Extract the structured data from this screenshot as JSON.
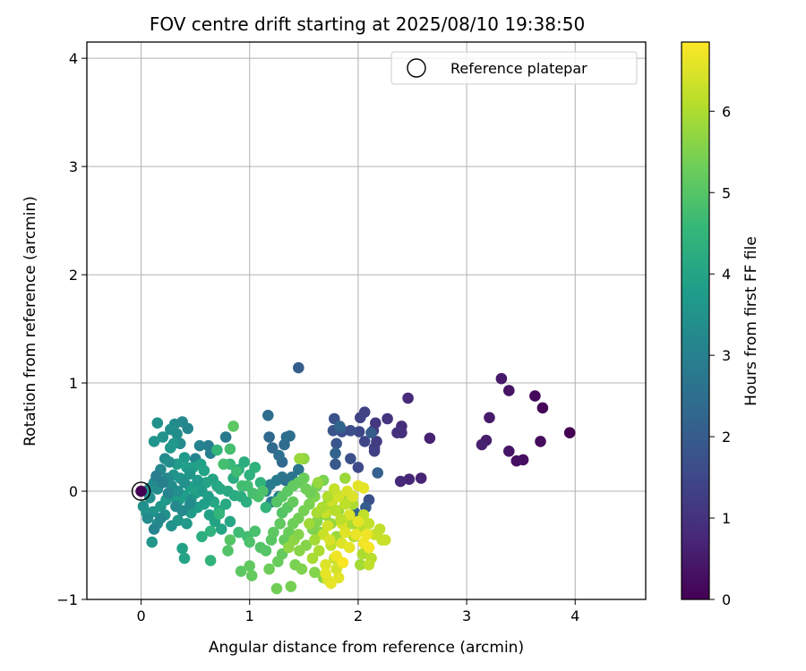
{
  "chart_data": {
    "type": "scatter",
    "title": "FOV centre drift starting at 2025/08/10 19:38:50",
    "xlabel": "Angular distance from reference (arcmin)",
    "ylabel": "Rotation from reference (arcmin)",
    "xlim": [
      -0.5,
      4.65
    ],
    "ylim": [
      -1.0,
      4.15
    ],
    "xticks": [
      0,
      1,
      2,
      3,
      4
    ],
    "xtick_labels": [
      "0",
      "1",
      "2",
      "3",
      "4"
    ],
    "yticks": [
      -1,
      0,
      1,
      2,
      3,
      4
    ],
    "ytick_labels": [
      "−1",
      "0",
      "1",
      "2",
      "3",
      "4"
    ],
    "grid": true,
    "legend": {
      "position": "top-right",
      "entries": [
        "Reference platepar"
      ]
    },
    "reference_point": {
      "x": 0,
      "y": 0,
      "label": "Reference platepar"
    },
    "colorbar": {
      "label": "Hours from first FF file",
      "min": 0,
      "max": 6.85,
      "ticks": [
        0,
        1,
        2,
        3,
        4,
        5,
        6
      ],
      "tick_labels": [
        "0",
        "1",
        "2",
        "3",
        "4",
        "5",
        "6"
      ],
      "colormap": [
        "#440154",
        "#482878",
        "#3e4989",
        "#31688e",
        "#26828e",
        "#1f9e89",
        "#35b779",
        "#6ece58",
        "#b5de2b",
        "#fde725"
      ]
    },
    "series_points_note": "",
    "points": [
      [
        3.95,
        0.54,
        0.0
      ],
      [
        3.7,
        0.77,
        0.1
      ],
      [
        3.63,
        0.88,
        0.15
      ],
      [
        3.68,
        0.46,
        0.2
      ],
      [
        3.52,
        0.29,
        0.25
      ],
      [
        3.46,
        0.28,
        0.3
      ],
      [
        3.39,
        0.93,
        0.35
      ],
      [
        3.39,
        0.37,
        0.4
      ],
      [
        3.32,
        1.04,
        0.45
      ],
      [
        3.21,
        0.68,
        0.5
      ],
      [
        3.18,
        0.47,
        0.55
      ],
      [
        3.14,
        0.43,
        0.6
      ],
      [
        2.66,
        0.49,
        0.65
      ],
      [
        2.58,
        0.12,
        0.7
      ],
      [
        2.47,
        0.11,
        0.75
      ],
      [
        2.39,
        0.09,
        0.8
      ],
      [
        2.46,
        0.86,
        0.85
      ],
      [
        2.4,
        0.6,
        0.9
      ],
      [
        2.4,
        0.54,
        0.95
      ],
      [
        2.36,
        0.54,
        1.0
      ],
      [
        2.27,
        0.67,
        1.05
      ],
      [
        2.16,
        0.63,
        1.1
      ],
      [
        2.14,
        0.56,
        1.15
      ],
      [
        2.17,
        0.46,
        1.2
      ],
      [
        2.15,
        0.4,
        1.25
      ],
      [
        2.15,
        0.37,
        1.3
      ],
      [
        2.06,
        0.73,
        1.35
      ],
      [
        2.02,
        0.68,
        1.4
      ],
      [
        2.06,
        0.46,
        1.45
      ],
      [
        2.01,
        0.55,
        1.5
      ],
      [
        2.0,
        0.22,
        1.55
      ],
      [
        1.85,
        0.55,
        1.6
      ],
      [
        1.93,
        0.56,
        1.65
      ],
      [
        1.93,
        0.3,
        1.7
      ],
      [
        1.78,
        0.67,
        1.75
      ],
      [
        1.77,
        0.56,
        1.8
      ],
      [
        1.8,
        0.44,
        1.85
      ],
      [
        1.79,
        0.25,
        1.9
      ],
      [
        1.84,
        0.58,
        1.95
      ],
      [
        2.12,
        0.54,
        2.0
      ],
      [
        1.45,
        1.14,
        2.05
      ],
      [
        2.18,
        0.17,
        2.1
      ],
      [
        1.79,
        0.35,
        2.15
      ],
      [
        1.83,
        0.6,
        2.2
      ],
      [
        2.1,
        -0.08,
        1.7
      ],
      [
        2.07,
        -0.15,
        2.0
      ],
      [
        1.97,
        -0.2,
        2.2
      ],
      [
        1.18,
        0.5,
        2.3
      ],
      [
        1.21,
        0.4,
        2.35
      ],
      [
        1.32,
        0.43,
        2.4
      ],
      [
        1.34,
        0.5,
        2.45
      ],
      [
        1.37,
        0.51,
        2.5
      ],
      [
        1.5,
        0.3,
        2.55
      ],
      [
        1.45,
        0.2,
        2.6
      ],
      [
        1.39,
        0.13,
        2.65
      ],
      [
        1.34,
        0.1,
        2.7
      ],
      [
        1.3,
        0.13,
        2.75
      ],
      [
        1.25,
        0.1,
        2.8
      ],
      [
        1.19,
        0.06,
        2.85
      ],
      [
        1.15,
        0.0,
        2.9
      ],
      [
        1.2,
        -0.1,
        2.95
      ],
      [
        1.27,
        -0.05,
        3.0
      ],
      [
        1.3,
        0.27,
        2.3
      ],
      [
        1.27,
        0.33,
        2.55
      ],
      [
        1.33,
        0.1,
        2.6
      ],
      [
        1.17,
        0.7,
        2.4
      ],
      [
        0.78,
        0.5,
        2.8
      ],
      [
        0.62,
        0.42,
        2.9
      ],
      [
        0.64,
        0.35,
        3.0
      ],
      [
        0.54,
        0.42,
        3.05
      ],
      [
        0.5,
        0.3,
        3.1
      ],
      [
        0.43,
        0.58,
        3.15
      ],
      [
        0.38,
        0.64,
        3.2
      ],
      [
        0.36,
        0.44,
        3.25
      ],
      [
        0.31,
        0.62,
        3.3
      ],
      [
        0.33,
        0.53,
        3.35
      ],
      [
        0.27,
        0.57,
        3.4
      ],
      [
        0.15,
        0.63,
        3.45
      ],
      [
        0.2,
        0.5,
        3.5
      ],
      [
        0.12,
        0.46,
        3.55
      ],
      [
        0.3,
        0.44,
        3.6
      ],
      [
        0.27,
        0.4,
        3.65
      ],
      [
        0.4,
        0.31,
        3.7
      ],
      [
        0.33,
        0.25,
        3.75
      ],
      [
        0.42,
        0.22,
        3.8
      ],
      [
        0.48,
        0.22,
        3.85
      ],
      [
        0.55,
        0.25,
        3.9
      ],
      [
        0.58,
        0.19,
        3.95
      ],
      [
        0.66,
        0.11,
        4.0
      ],
      [
        0.7,
        0.05,
        4.05
      ],
      [
        0.73,
        0.02,
        4.1
      ],
      [
        0.8,
        0.0,
        4.15
      ],
      [
        0.86,
        -0.04,
        4.2
      ],
      [
        0.92,
        -0.05,
        4.25
      ],
      [
        0.97,
        -0.1,
        4.3
      ],
      [
        0.05,
        0.0,
        3.2
      ],
      [
        0.08,
        0.03,
        3.25
      ],
      [
        0.12,
        0.08,
        3.3
      ],
      [
        0.15,
        0.02,
        3.35
      ],
      [
        0.08,
        -0.06,
        3.4
      ],
      [
        0.02,
        -0.14,
        3.45
      ],
      [
        0.05,
        -0.2,
        3.5
      ],
      [
        0.11,
        -0.19,
        3.55
      ],
      [
        0.18,
        -0.14,
        3.6
      ],
      [
        0.23,
        -0.08,
        3.65
      ],
      [
        0.29,
        -0.05,
        3.7
      ],
      [
        0.35,
        -0.08,
        3.75
      ],
      [
        0.4,
        -0.04,
        3.8
      ],
      [
        0.45,
        0.04,
        3.85
      ],
      [
        0.5,
        -0.02,
        3.9
      ],
      [
        0.55,
        0.05,
        3.95
      ],
      [
        0.6,
        0.08,
        4.0
      ],
      [
        0.67,
        -0.1,
        4.05
      ],
      [
        0.72,
        -0.18,
        4.1
      ],
      [
        0.78,
        -0.12,
        4.15
      ],
      [
        0.85,
        0.12,
        4.2
      ],
      [
        0.9,
        0.2,
        4.25
      ],
      [
        0.95,
        0.27,
        4.3
      ],
      [
        1.0,
        0.15,
        4.35
      ],
      [
        1.05,
        0.22,
        4.4
      ],
      [
        1.1,
        0.08,
        4.45
      ],
      [
        1.15,
        -0.15,
        4.5
      ],
      [
        0.06,
        -0.25,
        3.3
      ],
      [
        0.15,
        -0.3,
        3.35
      ],
      [
        0.22,
        -0.22,
        3.45
      ],
      [
        0.28,
        -0.32,
        3.5
      ],
      [
        0.34,
        -0.27,
        3.6
      ],
      [
        0.42,
        -0.3,
        3.7
      ],
      [
        0.46,
        -0.2,
        3.75
      ],
      [
        0.52,
        -0.15,
        3.8
      ],
      [
        0.58,
        -0.12,
        3.85
      ],
      [
        0.63,
        -0.22,
        3.9
      ],
      [
        0.68,
        -0.28,
        3.95
      ],
      [
        0.74,
        -0.35,
        4.0
      ],
      [
        0.82,
        -0.28,
        4.05
      ],
      [
        0.12,
        -0.35,
        3.1
      ],
      [
        0.18,
        -0.25,
        3.15
      ],
      [
        0.1,
        -0.47,
        3.6
      ],
      [
        0.38,
        -0.53,
        3.9
      ],
      [
        0.4,
        -0.62,
        4.0
      ],
      [
        0.56,
        -0.42,
        4.3
      ],
      [
        0.64,
        -0.37,
        4.4
      ],
      [
        0.64,
        -0.64,
        4.45
      ],
      [
        0.72,
        -0.21,
        4.5
      ],
      [
        0.22,
        0.3,
        3.3
      ],
      [
        0.26,
        0.27,
        3.4
      ],
      [
        0.3,
        0.15,
        3.5
      ],
      [
        0.36,
        0.12,
        3.55
      ],
      [
        0.45,
        0.16,
        3.6
      ],
      [
        0.52,
        0.1,
        3.7
      ],
      [
        0.56,
        0.0,
        3.75
      ],
      [
        0.62,
        -0.05,
        3.85
      ],
      [
        0.18,
        0.2,
        3.2
      ],
      [
        0.24,
        0.12,
        3.25
      ],
      [
        0.28,
        0.05,
        3.35
      ],
      [
        0.34,
        0.0,
        3.4
      ],
      [
        0.4,
        0.08,
        3.45
      ],
      [
        0.46,
        -0.08,
        3.5
      ],
      [
        0.2,
        0.08,
        3.0
      ],
      [
        0.14,
        0.14,
        2.9
      ],
      [
        0.25,
        -0.02,
        3.1
      ],
      [
        0.32,
        -0.14,
        3.2
      ],
      [
        0.38,
        -0.18,
        3.25
      ],
      [
        0.45,
        -0.12,
        3.3
      ],
      [
        0.82,
        0.25,
        4.6
      ],
      [
        0.88,
        0.18,
        4.7
      ],
      [
        0.93,
        0.05,
        4.75
      ],
      [
        0.7,
        0.38,
        4.5
      ],
      [
        0.82,
        0.39,
        4.8
      ],
      [
        0.85,
        0.6,
        5.1
      ],
      [
        0.76,
        0.25,
        4.8
      ],
      [
        0.98,
        0.05,
        4.75
      ],
      [
        1.03,
        -0.02,
        4.8
      ],
      [
        1.08,
        -0.05,
        4.85
      ],
      [
        1.12,
        0.0,
        4.9
      ],
      [
        0.9,
        -0.38,
        4.7
      ],
      [
        0.98,
        -0.42,
        4.75
      ],
      [
        1.05,
        -0.37,
        4.85
      ],
      [
        1.0,
        -0.47,
        4.9
      ],
      [
        1.1,
        -0.52,
        4.95
      ],
      [
        0.8,
        -0.55,
        4.95
      ],
      [
        0.82,
        -0.45,
        5.0
      ],
      [
        1.15,
        -0.55,
        5.0
      ],
      [
        1.2,
        -0.45,
        5.05
      ],
      [
        0.92,
        -0.74,
        5.1
      ],
      [
        1.0,
        -0.69,
        5.15
      ],
      [
        1.02,
        -0.78,
        5.2
      ],
      [
        1.18,
        -0.72,
        5.3
      ],
      [
        1.26,
        -0.65,
        5.25
      ],
      [
        1.25,
        -0.9,
        5.35
      ],
      [
        1.38,
        -0.88,
        5.4
      ],
      [
        1.42,
        -0.68,
        5.45
      ],
      [
        1.48,
        -0.72,
        5.5
      ],
      [
        1.6,
        -0.75,
        5.55
      ],
      [
        1.68,
        -0.8,
        5.6
      ],
      [
        1.3,
        -0.58,
        5.2
      ],
      [
        1.22,
        -0.38,
        5.1
      ],
      [
        1.28,
        -0.3,
        5.15
      ],
      [
        1.32,
        -0.45,
        5.2
      ],
      [
        1.36,
        -0.38,
        5.25
      ],
      [
        1.4,
        -0.3,
        5.3
      ],
      [
        1.45,
        -0.25,
        5.35
      ],
      [
        1.5,
        -0.18,
        5.4
      ],
      [
        1.55,
        -0.12,
        5.45
      ],
      [
        1.6,
        -0.05,
        5.5
      ],
      [
        1.62,
        -0.28,
        5.55
      ],
      [
        1.65,
        -0.38,
        5.6
      ],
      [
        1.7,
        -0.22,
        5.65
      ],
      [
        1.72,
        -0.12,
        5.7
      ],
      [
        1.25,
        -0.1,
        5.0
      ],
      [
        1.3,
        -0.05,
        5.05
      ],
      [
        1.35,
        0.0,
        5.1
      ],
      [
        1.4,
        0.05,
        5.15
      ],
      [
        1.45,
        0.08,
        5.2
      ],
      [
        1.5,
        0.12,
        5.25
      ],
      [
        1.52,
        0.02,
        5.3
      ],
      [
        1.56,
        -0.02,
        5.35
      ],
      [
        1.62,
        0.05,
        5.4
      ],
      [
        1.68,
        0.1,
        5.45
      ],
      [
        1.58,
        -0.35,
        5.5
      ],
      [
        1.52,
        -0.5,
        5.55
      ],
      [
        1.46,
        -0.55,
        5.6
      ],
      [
        1.41,
        -0.45,
        5.65
      ],
      [
        1.36,
        -0.52,
        5.7
      ],
      [
        1.3,
        -0.2,
        5.0
      ],
      [
        1.35,
        -0.15,
        5.05
      ],
      [
        1.4,
        -0.1,
        5.2
      ],
      [
        1.45,
        -0.4,
        5.55
      ],
      [
        1.75,
        -0.3,
        5.75
      ],
      [
        1.8,
        -0.42,
        5.8
      ],
      [
        1.82,
        -0.18,
        5.85
      ],
      [
        1.85,
        -0.05,
        5.9
      ],
      [
        1.5,
        0.3,
        5.7
      ],
      [
        1.63,
        0.08,
        5.75
      ],
      [
        1.88,
        0.12,
        5.8
      ],
      [
        1.95,
        -0.12,
        6.0
      ],
      [
        1.92,
        -0.3,
        6.05
      ],
      [
        1.96,
        -0.42,
        6.1
      ],
      [
        2.02,
        -0.35,
        6.15
      ],
      [
        2.05,
        -0.22,
        6.2
      ],
      [
        2.1,
        -0.3,
        6.25
      ],
      [
        2.15,
        -0.4,
        6.3
      ],
      [
        2.2,
        -0.35,
        6.2
      ],
      [
        2.22,
        -0.45,
        6.25
      ],
      [
        2.25,
        -0.45,
        6.3
      ],
      [
        2.04,
        -0.58,
        6.0
      ],
      [
        2.02,
        -0.68,
        5.9
      ],
      [
        2.12,
        -0.62,
        6.1
      ],
      [
        2.1,
        -0.68,
        6.2
      ],
      [
        1.95,
        -0.3,
        5.95
      ],
      [
        1.75,
        -0.5,
        6.2
      ],
      [
        1.78,
        -0.62,
        6.3
      ],
      [
        1.8,
        -0.72,
        6.4
      ],
      [
        1.72,
        -0.82,
        6.5
      ],
      [
        1.82,
        -0.8,
        6.55
      ],
      [
        1.75,
        -0.85,
        6.6
      ],
      [
        1.85,
        -0.48,
        6.5
      ],
      [
        1.88,
        -0.38,
        6.55
      ],
      [
        1.92,
        -0.52,
        6.6
      ],
      [
        1.98,
        -0.4,
        6.65
      ],
      [
        2.05,
        -0.48,
        6.7
      ],
      [
        2.1,
        -0.52,
        6.75
      ],
      [
        1.7,
        -0.2,
        6.3
      ],
      [
        1.76,
        -0.1,
        6.35
      ],
      [
        1.82,
        -0.05,
        6.4
      ],
      [
        1.9,
        0.0,
        6.45
      ],
      [
        1.95,
        -0.05,
        6.5
      ],
      [
        2.0,
        0.05,
        6.55
      ],
      [
        2.05,
        0.03,
        6.6
      ],
      [
        1.78,
        0.02,
        6.25
      ],
      [
        1.85,
        -0.3,
        6.45
      ],
      [
        1.92,
        -0.22,
        6.5
      ],
      [
        2.0,
        -0.28,
        6.6
      ],
      [
        2.08,
        -0.4,
        6.7
      ],
      [
        1.72,
        -0.32,
        6.4
      ],
      [
        1.68,
        -0.4,
        6.3
      ],
      [
        1.74,
        -0.45,
        6.45
      ],
      [
        1.7,
        -0.68,
        6.5
      ],
      [
        1.8,
        -0.6,
        6.7
      ],
      [
        1.86,
        -0.66,
        6.8
      ],
      [
        1.7,
        -0.76,
        6.6
      ],
      [
        1.6,
        -0.45,
        5.9
      ],
      [
        1.64,
        -0.55,
        6.0
      ],
      [
        1.58,
        -0.62,
        5.95
      ],
      [
        1.55,
        -0.3,
        5.85
      ],
      [
        1.62,
        -0.2,
        5.95
      ],
      [
        1.67,
        -0.15,
        6.0
      ],
      [
        1.72,
        -0.05,
        6.05
      ],
      [
        1.79,
        -0.18,
        6.1
      ],
      [
        1.84,
        -0.26,
        6.15
      ],
      [
        1.88,
        -0.12,
        6.2
      ],
      [
        1.46,
        0.3,
        5.8
      ]
    ]
  }
}
